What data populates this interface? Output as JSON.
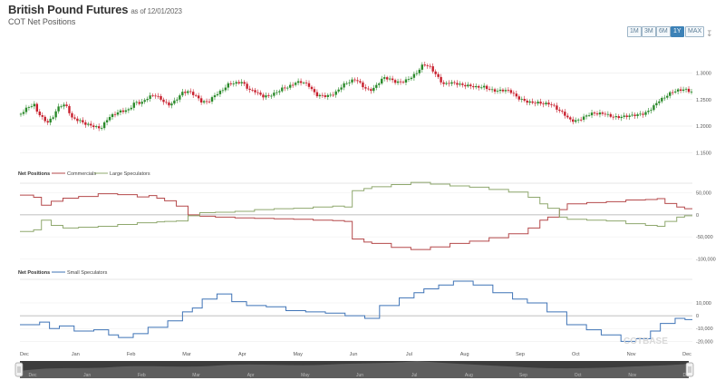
{
  "header": {
    "title": "British Pound Futures",
    "as_of": "as of 12/01/2023",
    "subtitle": "COT Net Positions"
  },
  "range_buttons": [
    {
      "label": "1M",
      "active": false
    },
    {
      "label": "3M",
      "active": false
    },
    {
      "label": "6M",
      "active": false
    },
    {
      "label": "1Y",
      "active": true
    },
    {
      "label": "MAX",
      "active": false
    }
  ],
  "download_icon": "download-icon",
  "watermark": "COTBASE",
  "colors": {
    "up": "#2b8a2b",
    "down": "#c8202e",
    "commercials": "#b5494b",
    "large_speculators": "#8fa86e",
    "small_speculators": "#3f73b6",
    "grid": "#e6e6e6",
    "navigator": "#4a4a4a"
  },
  "chart_data": [
    {
      "type": "candlestick",
      "title": "British Pound Futures",
      "y_ticks": [
        "1.3000",
        "1.2500",
        "1.2000",
        "1.1500"
      ],
      "ylim": [
        1.13,
        1.335
      ],
      "x_ticks": [
        "Dec",
        "Jan",
        "Feb",
        "Mar",
        "Apr",
        "May",
        "Jun",
        "Jul",
        "Aug",
        "Sep",
        "Oct",
        "Nov",
        "Dec"
      ],
      "close_trajectory": [
        [
          0,
          1.223
        ],
        [
          0.4,
          1.232
        ],
        [
          0.8,
          1.237
        ],
        [
          1.0,
          1.224
        ],
        [
          1.3,
          1.216
        ],
        [
          1.6,
          1.21
        ],
        [
          1.9,
          1.22
        ],
        [
          2.2,
          1.236
        ],
        [
          2.5,
          1.24
        ],
        [
          2.8,
          1.232
        ],
        [
          3.0,
          1.212
        ],
        [
          3.3,
          1.21
        ],
        [
          3.6,
          1.209
        ],
        [
          3.9,
          1.206
        ],
        [
          4.2,
          1.205
        ],
        [
          4.5,
          1.2
        ],
        [
          4.8,
          1.196
        ],
        [
          5.2,
          1.212
        ],
        [
          5.6,
          1.22
        ],
        [
          6.0,
          1.229
        ],
        [
          6.4,
          1.233
        ],
        [
          6.8,
          1.248
        ],
        [
          7.2,
          1.243
        ],
        [
          7.6,
          1.251
        ],
        [
          8.0,
          1.256
        ],
        [
          8.4,
          1.25
        ],
        [
          8.8,
          1.243
        ],
        [
          9.2,
          1.25
        ],
        [
          9.6,
          1.262
        ],
        [
          10.0,
          1.262
        ],
        [
          10.4,
          1.255
        ],
        [
          10.8,
          1.246
        ],
        [
          11.2,
          1.25
        ],
        [
          11.6,
          1.262
        ],
        [
          12.0,
          1.266
        ],
        [
          12.4,
          1.276
        ],
        [
          12.8,
          1.278
        ],
        [
          13.2,
          1.284
        ],
        [
          13.6,
          1.272
        ],
        [
          14.0,
          1.268
        ],
        [
          14.4,
          1.255
        ],
        [
          14.8,
          1.253
        ],
        [
          15.2,
          1.26
        ],
        [
          15.6,
          1.272
        ],
        [
          16.0,
          1.278
        ],
        [
          16.4,
          1.285
        ],
        [
          16.8,
          1.282
        ],
        [
          17.2,
          1.272
        ],
        [
          17.6,
          1.256
        ],
        [
          18.0,
          1.258
        ],
        [
          18.4,
          1.261
        ],
        [
          18.8,
          1.266
        ],
        [
          19.2,
          1.276
        ],
        [
          19.6,
          1.28
        ],
        [
          20.0,
          1.286
        ],
        [
          20.4,
          1.276
        ],
        [
          20.8,
          1.27
        ],
        [
          21.2,
          1.278
        ],
        [
          21.6,
          1.29
        ],
        [
          22.0,
          1.285
        ],
        [
          22.4,
          1.28
        ],
        [
          22.8,
          1.285
        ],
        [
          23.2,
          1.294
        ],
        [
          23.6,
          1.302
        ],
        [
          24.0,
          1.315
        ],
        [
          24.4,
          1.308
        ],
        [
          24.8,
          1.293
        ],
        [
          25.2,
          1.28
        ],
        [
          25.6,
          1.286
        ],
        [
          26.0,
          1.282
        ],
        [
          26.4,
          1.275
        ],
        [
          26.8,
          1.272
        ],
        [
          27.2,
          1.271
        ],
        [
          27.6,
          1.276
        ],
        [
          28.0,
          1.272
        ],
        [
          28.4,
          1.268
        ],
        [
          28.8,
          1.266
        ],
        [
          29.2,
          1.262
        ],
        [
          29.6,
          1.252
        ],
        [
          30.0,
          1.25
        ],
        [
          30.4,
          1.248
        ],
        [
          30.8,
          1.246
        ],
        [
          31.2,
          1.24
        ],
        [
          31.6,
          1.238
        ],
        [
          32.0,
          1.23
        ],
        [
          32.4,
          1.225
        ],
        [
          32.8,
          1.214
        ],
        [
          33.2,
          1.212
        ],
        [
          33.6,
          1.215
        ],
        [
          34.0,
          1.22
        ],
        [
          34.4,
          1.222
        ],
        [
          34.8,
          1.226
        ],
        [
          35.2,
          1.222
        ],
        [
          35.6,
          1.218
        ],
        [
          36.0,
          1.216
        ],
        [
          36.4,
          1.216
        ],
        [
          36.8,
          1.22
        ],
        [
          37.2,
          1.226
        ],
        [
          37.6,
          1.236
        ],
        [
          38.0,
          1.248
        ],
        [
          38.4,
          1.252
        ],
        [
          38.8,
          1.26
        ],
        [
          39.2,
          1.266
        ],
        [
          39.6,
          1.272
        ],
        [
          40.0,
          1.268
        ]
      ]
    },
    {
      "type": "line",
      "legend_title": "Net Positions",
      "series": [
        {
          "name": "Commercials",
          "color": "#b5494b",
          "points": [
            [
              0.0,
              45000
            ],
            [
              0.7,
              40000
            ],
            [
              1.1,
              22000
            ],
            [
              1.6,
              31000
            ],
            [
              2.2,
              38000
            ],
            [
              3.0,
              42000
            ],
            [
              4.0,
              48000
            ],
            [
              5.0,
              46000
            ],
            [
              6.0,
              41000
            ],
            [
              6.6,
              44000
            ],
            [
              7.0,
              38000
            ],
            [
              7.4,
              32000
            ],
            [
              8.0,
              20000
            ],
            [
              8.6,
              0
            ],
            [
              9.2,
              -3000
            ],
            [
              10.0,
              -5000
            ],
            [
              11.0,
              -7000
            ],
            [
              12.0,
              -8000
            ],
            [
              13.0,
              -9000
            ],
            [
              14.0,
              -10000
            ],
            [
              15.0,
              -12000
            ],
            [
              16.0,
              -13000
            ],
            [
              16.6,
              -15000
            ],
            [
              17.0,
              -55000
            ],
            [
              17.6,
              -62000
            ],
            [
              18.0,
              -65000
            ],
            [
              19.0,
              -74000
            ],
            [
              20.0,
              -79000
            ],
            [
              21.0,
              -73000
            ],
            [
              22.0,
              -65000
            ],
            [
              23.0,
              -60000
            ],
            [
              24.0,
              -52000
            ],
            [
              25.0,
              -43000
            ],
            [
              26.0,
              -30000
            ],
            [
              26.6,
              -12000
            ],
            [
              27.0,
              -5000
            ],
            [
              27.6,
              12000
            ],
            [
              28.0,
              25000
            ],
            [
              29.0,
              28000
            ],
            [
              30.0,
              30000
            ],
            [
              31.0,
              34000
            ],
            [
              32.0,
              35000
            ],
            [
              32.6,
              37000
            ],
            [
              33.0,
              26000
            ],
            [
              33.6,
              18000
            ],
            [
              34.0,
              14000
            ]
          ]
        },
        {
          "name": "Large Speculators",
          "color": "#8fa86e",
          "points": [
            [
              0.0,
              -38000
            ],
            [
              0.7,
              -34000
            ],
            [
              1.1,
              -12000
            ],
            [
              1.6,
              -24000
            ],
            [
              2.2,
              -30000
            ],
            [
              3.0,
              -28000
            ],
            [
              4.0,
              -26000
            ],
            [
              5.0,
              -22000
            ],
            [
              6.0,
              -18000
            ],
            [
              7.0,
              -16000
            ],
            [
              7.4,
              -15000
            ],
            [
              8.0,
              -14000
            ],
            [
              8.6,
              -2000
            ],
            [
              9.2,
              5000
            ],
            [
              10.0,
              6000
            ],
            [
              11.0,
              8000
            ],
            [
              12.0,
              12000
            ],
            [
              13.0,
              14000
            ],
            [
              14.0,
              15000
            ],
            [
              15.0,
              18000
            ],
            [
              16.0,
              20000
            ],
            [
              16.6,
              18000
            ],
            [
              17.0,
              55000
            ],
            [
              17.6,
              60000
            ],
            [
              18.0,
              64000
            ],
            [
              19.0,
              69000
            ],
            [
              20.0,
              74000
            ],
            [
              21.0,
              70000
            ],
            [
              22.0,
              66000
            ],
            [
              23.0,
              63000
            ],
            [
              24.0,
              58000
            ],
            [
              25.0,
              52000
            ],
            [
              26.0,
              40000
            ],
            [
              26.6,
              25000
            ],
            [
              27.0,
              15000
            ],
            [
              27.6,
              -5000
            ],
            [
              28.0,
              -10000
            ],
            [
              29.0,
              -12000
            ],
            [
              30.0,
              -14000
            ],
            [
              31.0,
              -20000
            ],
            [
              32.0,
              -24000
            ],
            [
              32.6,
              -26000
            ],
            [
              33.0,
              -15000
            ],
            [
              33.6,
              -5000
            ],
            [
              34.0,
              -2000
            ]
          ]
        }
      ],
      "y_ticks": [
        "50,000",
        "0",
        "-50,000",
        "-100,000"
      ],
      "ylim": [
        -118000,
        68000
      ]
    },
    {
      "type": "line",
      "legend_title": "Net Positions",
      "series": [
        {
          "name": "Small Speculators",
          "color": "#3f73b6",
          "points": [
            [
              0.0,
              -7000
            ],
            [
              0.8,
              -5000
            ],
            [
              1.2,
              -10000
            ],
            [
              1.6,
              -8000
            ],
            [
              2.2,
              -12000
            ],
            [
              3.0,
              -11000
            ],
            [
              3.6,
              -15000
            ],
            [
              4.0,
              -17000
            ],
            [
              4.6,
              -14000
            ],
            [
              5.2,
              -9000
            ],
            [
              6.0,
              -4000
            ],
            [
              6.6,
              3000
            ],
            [
              7.0,
              6000
            ],
            [
              7.4,
              13000
            ],
            [
              8.0,
              17000
            ],
            [
              8.6,
              11000
            ],
            [
              9.2,
              8000
            ],
            [
              10.0,
              7000
            ],
            [
              10.8,
              4000
            ],
            [
              11.6,
              3000
            ],
            [
              12.4,
              2000
            ],
            [
              13.2,
              0
            ],
            [
              14.0,
              -2000
            ],
            [
              14.6,
              8000
            ],
            [
              15.4,
              14000
            ],
            [
              16.0,
              18000
            ],
            [
              16.4,
              21000
            ],
            [
              17.0,
              24000
            ],
            [
              17.6,
              27000
            ],
            [
              18.4,
              24000
            ],
            [
              19.2,
              18000
            ],
            [
              20.0,
              13000
            ],
            [
              20.6,
              10000
            ],
            [
              21.4,
              3000
            ],
            [
              22.2,
              -7000
            ],
            [
              23.0,
              -11000
            ],
            [
              23.6,
              -15000
            ],
            [
              24.4,
              -20000
            ],
            [
              25.0,
              -18000
            ],
            [
              25.6,
              -12000
            ],
            [
              26.0,
              -6000
            ],
            [
              26.6,
              -2000
            ],
            [
              27.0,
              -3000
            ]
          ]
        }
      ],
      "y_ticks": [
        "10,000",
        "0",
        "-10,000",
        "-20,000"
      ],
      "ylim": [
        -24000,
        27000
      ]
    }
  ]
}
